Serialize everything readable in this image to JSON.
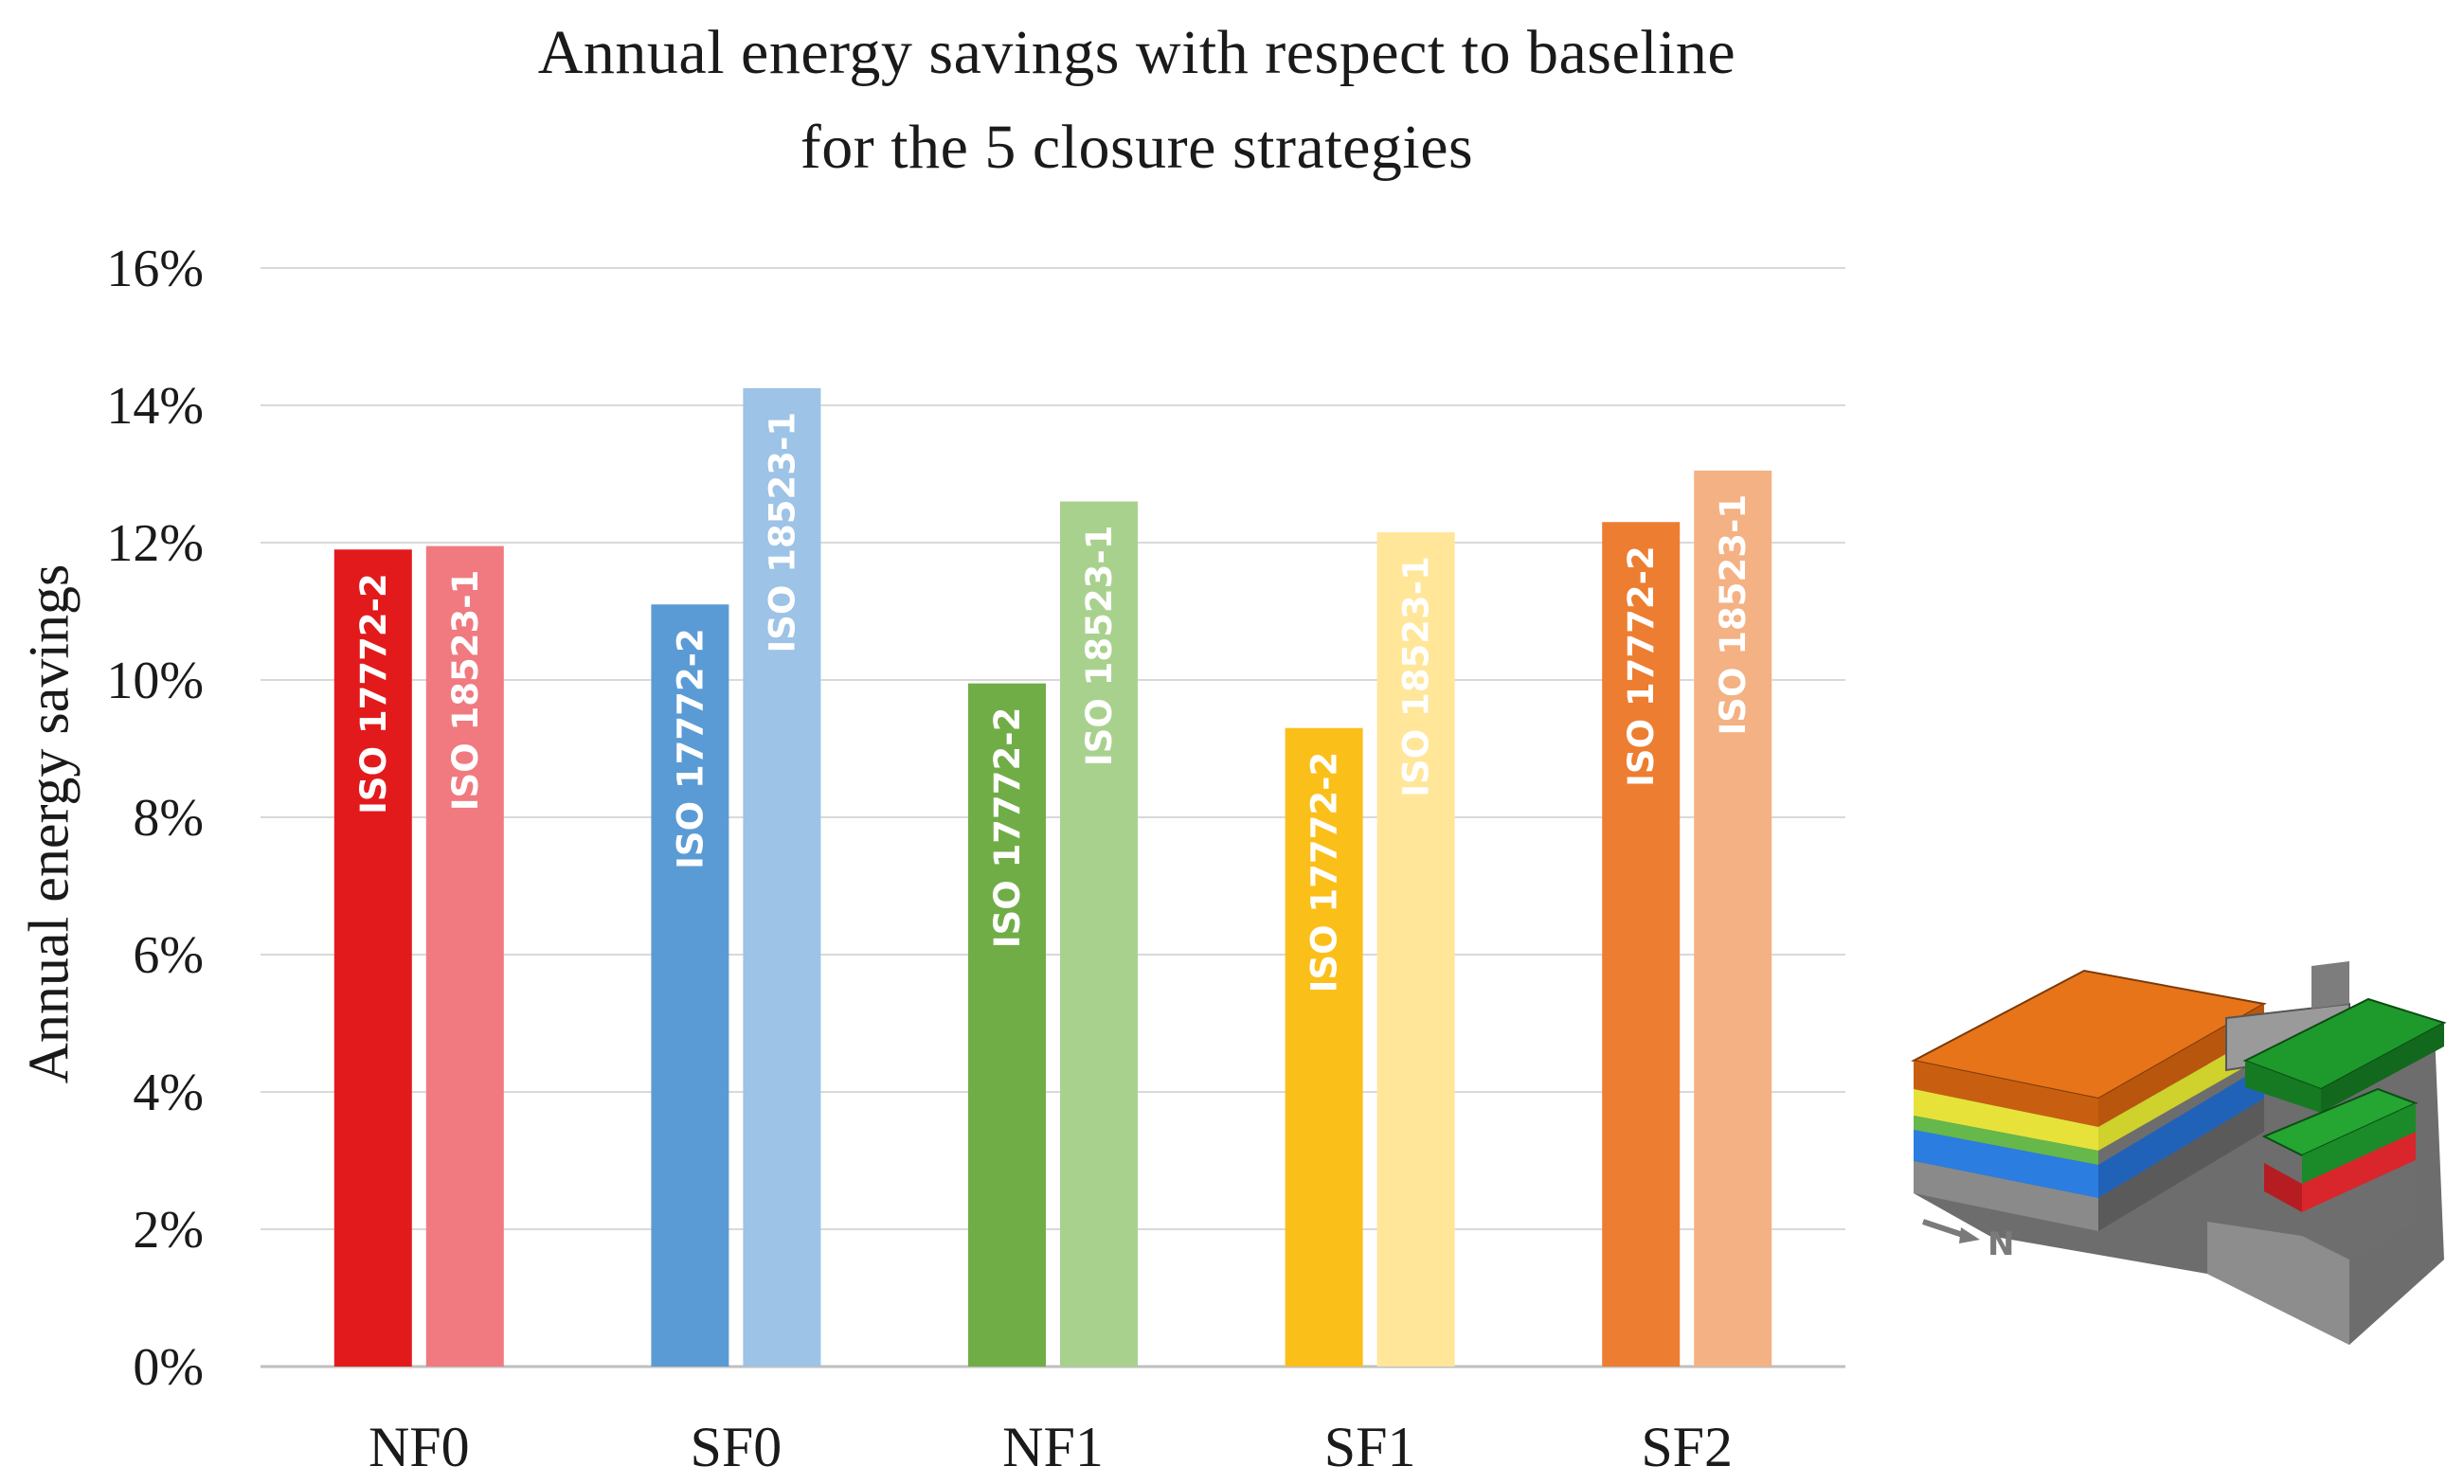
{
  "chart_data": {
    "type": "bar",
    "title": [
      "Annual energy savings  with respect to baseline",
      "for the 5 closure strategies"
    ],
    "xlabel": "",
    "ylabel": "Annual energy savings",
    "ylim": [
      0,
      16
    ],
    "yticks": [
      "0%",
      "2%",
      "4%",
      "6%",
      "8%",
      "10%",
      "12%",
      "14%",
      "16%"
    ],
    "grid": true,
    "categories": [
      "NF0",
      "SF0",
      "NF1",
      "SF1",
      "SF2"
    ],
    "series": [
      {
        "name": "ISO 17772-2",
        "values": [
          11.9,
          11.1,
          9.95,
          9.3,
          12.3
        ],
        "colors": [
          "#e31a1c",
          "#5b9bd5",
          "#70ad47",
          "#fbbf1a",
          "#ed7d31"
        ]
      },
      {
        "name": "ISO 18523-1",
        "values": [
          11.95,
          14.25,
          12.6,
          12.15,
          13.05
        ],
        "colors": [
          "#f07a7f",
          "#9dc3e6",
          "#a9d18e",
          "#ffe699",
          "#f4b183"
        ]
      }
    ]
  },
  "compass_label": "N"
}
